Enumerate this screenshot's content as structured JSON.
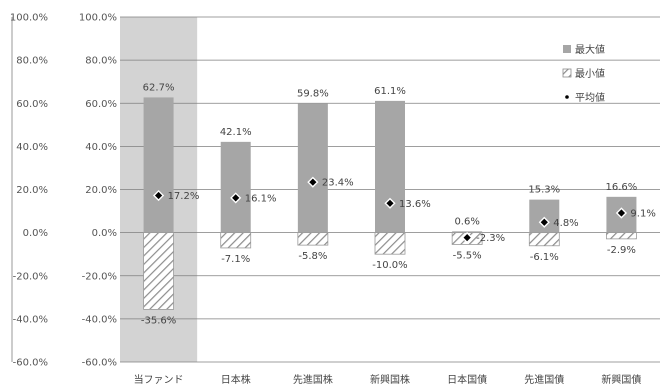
{
  "chart_data": {
    "type": "bar",
    "categories": [
      "当ファンド",
      "日本株",
      "先進国株",
      "新興国株",
      "日本国債",
      "先進国債",
      "新興国債"
    ],
    "series": [
      {
        "name": "最大値",
        "values": [
          62.7,
          42.1,
          59.8,
          61.1,
          0.6,
          15.3,
          16.6
        ],
        "labels": [
          "62.7%",
          "42.1%",
          "59.8%",
          "61.1%",
          "0.6%",
          "15.3%",
          "16.6%"
        ]
      },
      {
        "name": "最小値",
        "values": [
          -35.6,
          -7.1,
          -5.8,
          -10.0,
          -5.5,
          -6.1,
          -2.9
        ],
        "labels": [
          "-35.6%",
          "-7.1%",
          "-5.8%",
          "-10.0%",
          "-5.5%",
          "-6.1%",
          "-2.9%"
        ]
      },
      {
        "name": "平均値",
        "values": [
          17.2,
          16.1,
          23.4,
          13.6,
          -2.3,
          4.8,
          9.1
        ],
        "labels": [
          "17.2%",
          "16.1%",
          "23.4%",
          "13.6%",
          "-2.3%",
          "4.8%",
          "9.1%"
        ]
      }
    ],
    "ylim": [
      -60,
      100
    ],
    "ytick_values": [
      100,
      80,
      60,
      40,
      20,
      0,
      -20,
      -40,
      -60
    ],
    "yticks": [
      "100.0%",
      "80.0%",
      "60.0%",
      "40.0%",
      "20.0%",
      "0.0%",
      "-20.0%",
      "-40.0%",
      "-60.0%"
    ],
    "highlight_category": "当ファンド",
    "grid": true,
    "legend_position": "top-right",
    "colors": {
      "max": "#a6a6a6",
      "min_hatch": "#8c8c8c",
      "avg": "#000000",
      "highlight": "#d3d3d3",
      "grid": "#7f7f7f"
    }
  }
}
